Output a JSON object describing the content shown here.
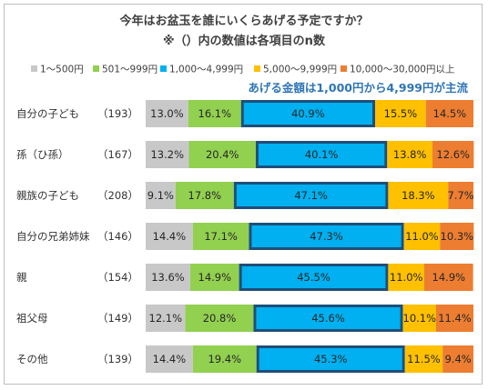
{
  "chart_data": {
    "type": "bar",
    "stacked": true,
    "orientation": "horizontal",
    "title": "今年はお盆玉を誰にいくらあげる予定ですか？",
    "subtitle": "※（）内の数値は各項目のn数",
    "annotation": "あげる金額は1,000円から4,999円が主流",
    "legend_position": "top",
    "value_format": "percent",
    "categories": [
      {
        "label": "自分の子ども",
        "n": "（193）"
      },
      {
        "label": "孫（ひ孫）",
        "n": "（167）"
      },
      {
        "label": "親族の子ども",
        "n": "（208）"
      },
      {
        "label": "自分の兄弟姉妹",
        "n": "（146）"
      },
      {
        "label": "親",
        "n": "（154）"
      },
      {
        "label": "祖父母",
        "n": "（149）"
      },
      {
        "label": "その他",
        "n": "（139）"
      }
    ],
    "series": [
      {
        "name": "1～500円",
        "color": "#c8c8c8",
        "values": [
          13.0,
          13.2,
          9.1,
          14.4,
          13.6,
          12.1,
          14.4
        ]
      },
      {
        "name": "501～999円",
        "color": "#92d050",
        "values": [
          16.1,
          20.4,
          17.8,
          17.1,
          14.9,
          20.8,
          19.4
        ]
      },
      {
        "name": "1,000～4,999円",
        "color": "#00b0f0",
        "values": [
          40.9,
          40.1,
          47.1,
          47.3,
          45.5,
          45.6,
          45.3
        ]
      },
      {
        "name": "5,000～9,999円",
        "color": "#ffc000",
        "values": [
          15.5,
          13.8,
          18.3,
          11.0,
          11.0,
          10.1,
          11.5
        ]
      },
      {
        "name": "10,000～30,000円以上",
        "color": "#ed7d31",
        "values": [
          14.5,
          12.6,
          7.7,
          10.3,
          14.9,
          11.4,
          9.4
        ]
      }
    ],
    "highlight_series": "1,000～4,999円",
    "highlight_border_color": "#1f4e79",
    "annotation_color": "#2e75b6",
    "xlim": [
      0,
      100
    ]
  }
}
